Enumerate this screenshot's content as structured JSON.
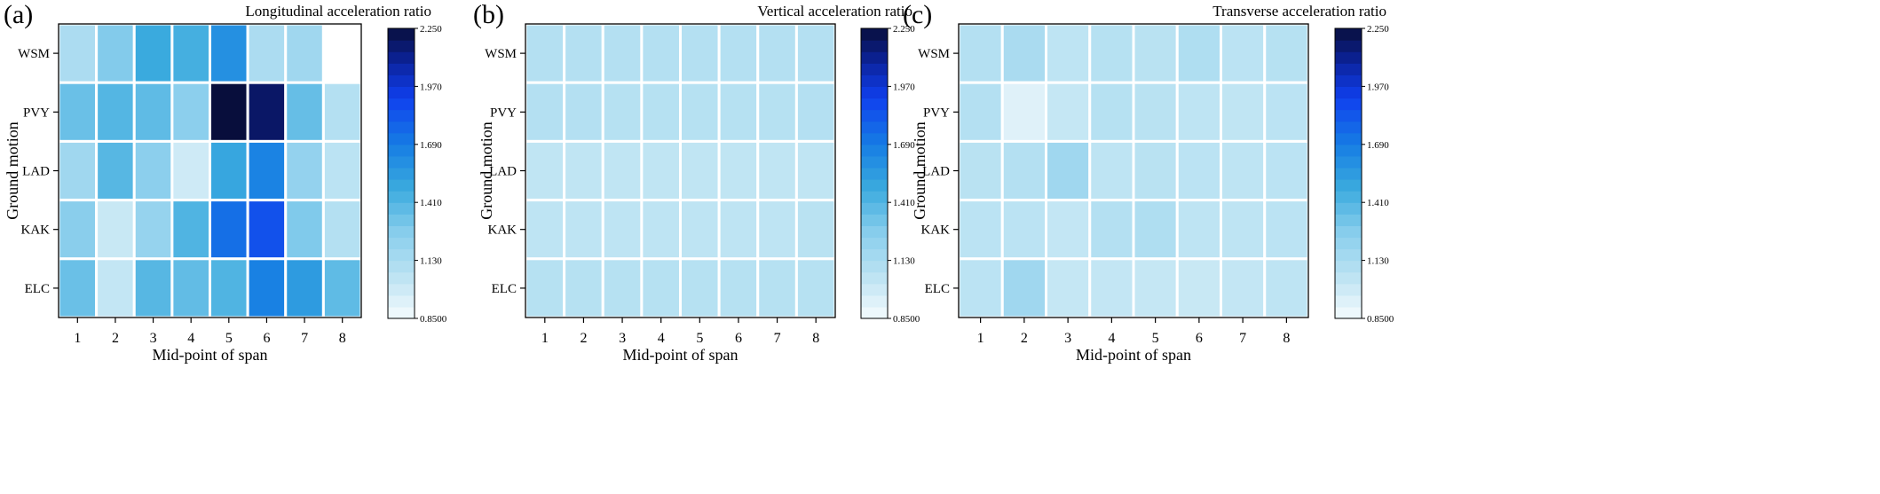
{
  "chart_data": [
    {
      "type": "heatmap",
      "panel_label": "(a)",
      "title": "Longitudinal acceleration ratio",
      "xlabel": "Mid-point of span",
      "ylabel": "Ground motion",
      "x": [
        "1",
        "2",
        "3",
        "4",
        "5",
        "6",
        "7",
        "8"
      ],
      "y": [
        "WSM",
        "PVY",
        "LAD",
        "KAK",
        "ELC"
      ],
      "values": [
        [
          1.12,
          1.28,
          1.48,
          1.45,
          1.6,
          1.12,
          1.17,
          null
        ],
        [
          1.35,
          1.41,
          1.38,
          1.25,
          2.25,
          2.18,
          1.36,
          1.09
        ],
        [
          1.17,
          1.4,
          1.25,
          0.99,
          1.5,
          1.66,
          1.22,
          1.06
        ],
        [
          1.26,
          1.01,
          1.21,
          1.42,
          1.74,
          1.85,
          1.29,
          1.09
        ],
        [
          1.35,
          1.03,
          1.4,
          1.37,
          1.42,
          1.67,
          1.55,
          1.38
        ]
      ],
      "colorbar": {
        "min": 0.85,
        "max": 2.25,
        "ticks": [
          "2.250",
          "1.970",
          "1.690",
          "1.410",
          "1.130",
          "0.8500"
        ]
      }
    },
    {
      "type": "heatmap",
      "panel_label": "(b)",
      "title": "Vertical acceleration ratio",
      "xlabel": "Mid-point of span",
      "ylabel": "Ground motion",
      "x": [
        "1",
        "2",
        "3",
        "4",
        "5",
        "6",
        "7",
        "8"
      ],
      "y": [
        "WSM",
        "PVY",
        "LAD",
        "KAK",
        "ELC"
      ],
      "values": [
        [
          1.09,
          1.09,
          1.09,
          1.09,
          1.09,
          1.09,
          1.09,
          1.09
        ],
        [
          1.09,
          1.09,
          1.08,
          1.08,
          1.08,
          1.08,
          1.08,
          1.09
        ],
        [
          1.04,
          1.04,
          1.04,
          1.04,
          1.04,
          1.04,
          1.04,
          1.04
        ],
        [
          1.05,
          1.05,
          1.05,
          1.05,
          1.05,
          1.05,
          1.05,
          1.07
        ],
        [
          1.08,
          1.08,
          1.08,
          1.08,
          1.08,
          1.08,
          1.08,
          1.08
        ]
      ],
      "colorbar": {
        "min": 0.85,
        "max": 2.25,
        "ticks": [
          "2.250",
          "1.970",
          "1.690",
          "1.410",
          "1.130",
          "0.8500"
        ]
      }
    },
    {
      "type": "heatmap",
      "panel_label": "(c)",
      "title": "Transverse acceleration ratio",
      "xlabel": "Mid-point of span",
      "ylabel": "Ground motion",
      "x": [
        "1",
        "2",
        "3",
        "4",
        "5",
        "6",
        "7",
        "8"
      ],
      "y": [
        "WSM",
        "PVY",
        "LAD",
        "KAK",
        "ELC"
      ],
      "values": [
        [
          1.09,
          1.13,
          1.05,
          1.08,
          1.07,
          1.11,
          1.06,
          1.08
        ],
        [
          1.09,
          0.93,
          1.02,
          1.08,
          1.07,
          1.05,
          1.04,
          1.06
        ],
        [
          1.07,
          1.09,
          1.17,
          1.05,
          1.07,
          1.06,
          1.05,
          1.06
        ],
        [
          1.06,
          1.06,
          1.03,
          1.09,
          1.11,
          1.05,
          1.05,
          1.06
        ],
        [
          1.06,
          1.17,
          1.02,
          1.03,
          1.02,
          1.01,
          1.03,
          1.05
        ]
      ],
      "colorbar": {
        "min": 0.85,
        "max": 2.25,
        "ticks": [
          "2.250",
          "1.970",
          "1.690",
          "1.410",
          "1.130",
          "0.8500"
        ]
      }
    }
  ]
}
